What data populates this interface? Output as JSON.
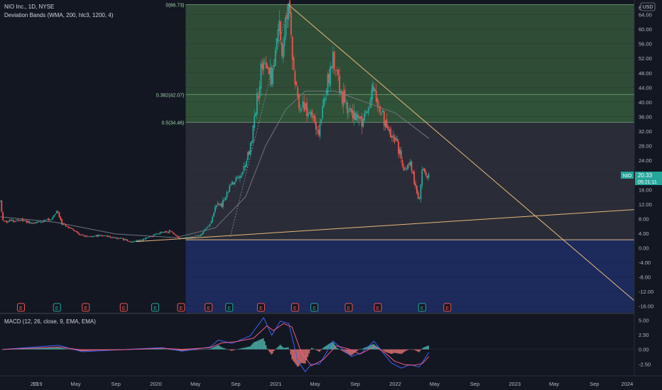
{
  "header": {
    "title": "NIO Inc., 1D, NYSE",
    "indicator": "Deviation Bands (WMA, 200, hlc3, 1200, 4)",
    "currency": "USD",
    "top_tick": "6"
  },
  "macd_label": "MACD (12, 26, close, 9, EMA, EMA)",
  "price_badge": {
    "symbol": "NIO",
    "price": "20.33",
    "countdown": "05:21:11"
  },
  "colors": {
    "background": "#131722",
    "up": "#26a69a",
    "down": "#ef5350",
    "fib_top_zone": "#2f4d36",
    "fib_mid_zone": "#2f5238",
    "fib_lower_zone": "#2a2d37",
    "fib_negative_zone": "#1c2a5c",
    "trendline": "#e8b77a",
    "band_line": "#6f7480",
    "macd_line": "#3b63f6",
    "signal_line": "#f05a8a"
  },
  "chart_data": [
    {
      "type": "candlestick",
      "title": "NIO Inc., 1D, NYSE",
      "y_ticks": [
        "64.00",
        "60.00",
        "56.00",
        "52.00",
        "48.00",
        "44.00",
        "40.00",
        "36.00",
        "32.00",
        "28.00",
        "24.00",
        "20.00",
        "16.00",
        "12.00",
        "8.00",
        "4.00",
        "0.00",
        "-4.00",
        "-8.00",
        "-12.00",
        "-16.00"
      ],
      "ylim": [
        -18,
        68
      ],
      "x_ticks": [
        "13",
        "2019",
        "May",
        "Sep",
        "2020",
        "May",
        "Sep",
        "2021",
        "May",
        "Sep",
        "2022",
        "May",
        "Sep",
        "2023",
        "May",
        "Sep",
        "2024"
      ],
      "xlim": [
        "2018-09-12",
        "2024-01-01"
      ],
      "price_points": [
        [
          "2018-09-13",
          13.0
        ],
        [
          "2018-09-20",
          7.5
        ],
        [
          "2018-10-15",
          7.2
        ],
        [
          "2018-11-20",
          7.8
        ],
        [
          "2018-12-15",
          6.8
        ],
        [
          "2019-01-10",
          7.2
        ],
        [
          "2019-02-15",
          7.6
        ],
        [
          "2019-03-06",
          10.0
        ],
        [
          "2019-03-20",
          6.5
        ],
        [
          "2019-04-15",
          5.5
        ],
        [
          "2019-05-15",
          3.5
        ],
        [
          "2019-06-15",
          3.2
        ],
        [
          "2019-07-15",
          3.4
        ],
        [
          "2019-08-15",
          3.0
        ],
        [
          "2019-09-15",
          2.5
        ],
        [
          "2019-10-15",
          1.7
        ],
        [
          "2019-11-15",
          2.0
        ],
        [
          "2019-12-15",
          3.0
        ],
        [
          "2020-01-15",
          4.2
        ],
        [
          "2020-02-15",
          4.5
        ],
        [
          "2020-03-15",
          2.5
        ],
        [
          "2020-04-15",
          3.0
        ],
        [
          "2020-05-15",
          3.5
        ],
        [
          "2020-06-15",
          6.5
        ],
        [
          "2020-07-05",
          12.5
        ],
        [
          "2020-07-20",
          11.5
        ],
        [
          "2020-08-15",
          17.0
        ],
        [
          "2020-09-01",
          19.0
        ],
        [
          "2020-09-20",
          21.0
        ],
        [
          "2020-10-15",
          27.0
        ],
        [
          "2020-11-15",
          47.0
        ],
        [
          "2020-12-01",
          52.0
        ],
        [
          "2020-12-20",
          45.0
        ],
        [
          "2021-01-10",
          62.0
        ],
        [
          "2021-01-20",
          55.0
        ],
        [
          "2021-02-09",
          66.0
        ],
        [
          "2021-02-25",
          48.0
        ],
        [
          "2021-03-10",
          40.0
        ],
        [
          "2021-03-31",
          38.0
        ],
        [
          "2021-04-15",
          37.0
        ],
        [
          "2021-05-12",
          32.0
        ],
        [
          "2021-06-01",
          42.0
        ],
        [
          "2021-06-15",
          47.0
        ],
        [
          "2021-06-25",
          53.0
        ],
        [
          "2021-07-10",
          46.0
        ],
        [
          "2021-07-28",
          40.0
        ],
        [
          "2021-08-15",
          38.0
        ],
        [
          "2021-09-01",
          36.0
        ],
        [
          "2021-09-20",
          35.0
        ],
        [
          "2021-10-10",
          38.0
        ],
        [
          "2021-10-25",
          43.0
        ],
        [
          "2021-11-10",
          40.0
        ],
        [
          "2021-11-25",
          36.0
        ],
        [
          "2021-12-10",
          32.0
        ],
        [
          "2021-12-30",
          30.0
        ],
        [
          "2022-01-15",
          26.0
        ],
        [
          "2022-01-30",
          21.0
        ],
        [
          "2022-02-10",
          24.0
        ],
        [
          "2022-02-25",
          20.0
        ],
        [
          "2022-03-08",
          15.0
        ],
        [
          "2022-03-15",
          13.5
        ],
        [
          "2022-03-25",
          22.0
        ],
        [
          "2022-04-05",
          19.0
        ],
        [
          "2022-04-14",
          20.33
        ]
      ],
      "band_points": [
        [
          "2018-09-13",
          8.5
        ],
        [
          "2019-03-01",
          7.0
        ],
        [
          "2019-09-01",
          3.8
        ],
        [
          "2020-03-01",
          2.8
        ],
        [
          "2020-07-01",
          5.5
        ],
        [
          "2020-10-01",
          14.0
        ],
        [
          "2020-12-01",
          28.0
        ],
        [
          "2021-02-01",
          38.0
        ],
        [
          "2021-04-01",
          43.0
        ],
        [
          "2021-07-01",
          43.0
        ],
        [
          "2021-10-01",
          40.0
        ],
        [
          "2022-01-01",
          37.0
        ],
        [
          "2022-04-14",
          30.0
        ]
      ],
      "fibonacci": [
        {
          "label": "0(66.73)",
          "value": 66.73
        },
        {
          "label": "0.382(42.07)",
          "value": 42.07
        },
        {
          "label": "0.5(34.46)",
          "value": 34.46
        },
        {
          "label": "",
          "value": 2.2
        }
      ],
      "fib_start": "2020-04-01",
      "trendlines": [
        {
          "from": [
            "2021-02-09",
            66.7
          ],
          "to": [
            "2024-01-01",
            -14.5
          ]
        },
        {
          "from": [
            "2019-11-01",
            1.7
          ],
          "to": [
            "2024-01-01",
            10.5
          ]
        }
      ],
      "earnings": [
        "2018-11-15",
        "2019-03-05",
        "2019-06-01",
        "2019-09-25",
        "2019-12-30",
        "2020-03-18",
        "2020-06-10",
        "2020-08-12",
        "2020-11-17",
        "2021-03-01",
        "2021-04-29",
        "2021-08-12",
        "2021-11-09",
        "2022-03-24",
        "2022-06-09"
      ],
      "earnings_label": "E"
    },
    {
      "type": "histogram+line",
      "title": "MACD (12, 26, close, 9, EMA, EMA)",
      "y_ticks": [
        "5.00",
        "2.50",
        "0.00",
        "-2.50"
      ],
      "ylim": [
        -4.5,
        6.0
      ],
      "macd": [
        [
          "2018-09-20",
          0.0
        ],
        [
          "2019-03-10",
          0.7
        ],
        [
          "2019-05-20",
          -0.4
        ],
        [
          "2019-09-01",
          -0.1
        ],
        [
          "2020-01-20",
          0.3
        ],
        [
          "2020-03-20",
          -0.3
        ],
        [
          "2020-06-15",
          0.4
        ],
        [
          "2020-07-10",
          1.6
        ],
        [
          "2020-08-20",
          1.0
        ],
        [
          "2020-10-15",
          2.3
        ],
        [
          "2020-11-25",
          5.4
        ],
        [
          "2020-12-20",
          2.4
        ],
        [
          "2021-01-15",
          4.8
        ],
        [
          "2021-02-10",
          4.4
        ],
        [
          "2021-03-10",
          -2.0
        ],
        [
          "2021-04-01",
          -3.8
        ],
        [
          "2021-04-20",
          -2.5
        ],
        [
          "2021-05-15",
          -2.5
        ],
        [
          "2021-06-25",
          1.4
        ],
        [
          "2021-07-25",
          0.0
        ],
        [
          "2021-08-20",
          -1.2
        ],
        [
          "2021-09-20",
          -0.6
        ],
        [
          "2021-10-28",
          1.4
        ],
        [
          "2021-11-25",
          -0.6
        ],
        [
          "2021-12-20",
          -2.3
        ],
        [
          "2022-01-20",
          -3.2
        ],
        [
          "2022-02-15",
          -2.6
        ],
        [
          "2022-03-15",
          -3.0
        ],
        [
          "2022-04-14",
          -0.5
        ]
      ],
      "signal": [
        [
          "2018-09-20",
          0.0
        ],
        [
          "2019-03-10",
          0.4
        ],
        [
          "2019-05-20",
          -0.1
        ],
        [
          "2019-09-01",
          -0.1
        ],
        [
          "2020-01-20",
          0.2
        ],
        [
          "2020-03-20",
          0.0
        ],
        [
          "2020-06-15",
          0.3
        ],
        [
          "2020-07-20",
          1.1
        ],
        [
          "2020-09-01",
          1.3
        ],
        [
          "2020-10-25",
          1.9
        ],
        [
          "2020-12-05",
          4.0
        ],
        [
          "2020-12-25",
          3.2
        ],
        [
          "2021-01-25",
          4.4
        ],
        [
          "2021-02-20",
          3.8
        ],
        [
          "2021-03-20",
          -0.5
        ],
        [
          "2021-04-20",
          -2.8
        ],
        [
          "2021-05-25",
          -1.8
        ],
        [
          "2021-07-05",
          0.6
        ],
        [
          "2021-08-10",
          0.1
        ],
        [
          "2021-09-15",
          -0.8
        ],
        [
          "2021-10-30",
          0.5
        ],
        [
          "2021-12-01",
          -0.6
        ],
        [
          "2021-12-30",
          -2.0
        ],
        [
          "2022-01-30",
          -2.6
        ],
        [
          "2022-02-28",
          -2.7
        ],
        [
          "2022-03-25",
          -2.4
        ],
        [
          "2022-04-14",
          -1.2
        ]
      ]
    }
  ]
}
